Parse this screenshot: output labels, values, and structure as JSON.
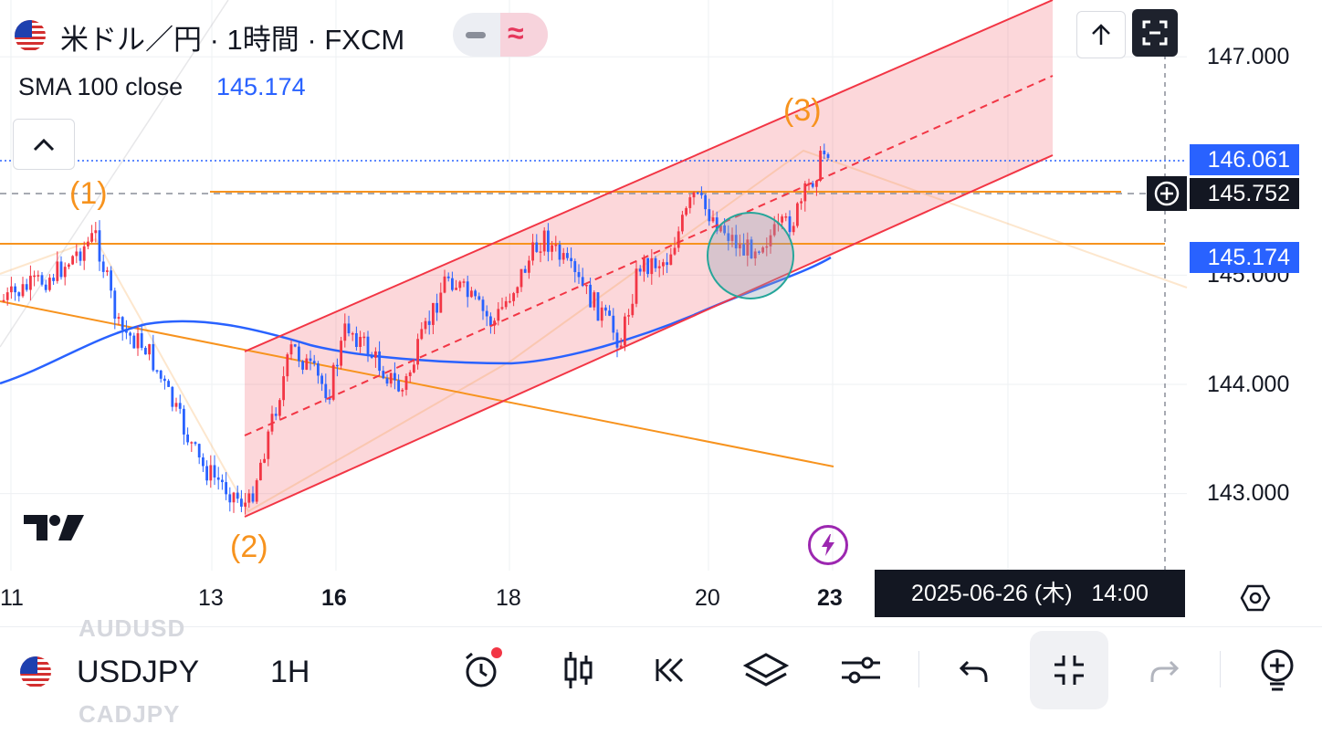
{
  "header": {
    "title": "米ドル／円 · 1時間 · FXCM",
    "indicator_label": "SMA 100 close",
    "indicator_value": "145.174"
  },
  "price_axis": {
    "ticks": [
      "147.000",
      "144.000",
      "143.000"
    ],
    "partial_tick": "145.000",
    "labels": {
      "last_price": "146.061",
      "crosshair_price": "145.752",
      "sma_price": "145.174"
    }
  },
  "time_axis": {
    "ticks": [
      {
        "label": "11",
        "bold": false
      },
      {
        "label": "13",
        "bold": false
      },
      {
        "label": "16",
        "bold": true
      },
      {
        "label": "18",
        "bold": false
      },
      {
        "label": "20",
        "bold": false
      },
      {
        "label": "23",
        "bold": true
      }
    ],
    "crosshair_time": "2025-06-26 (木)   14:00"
  },
  "wave_labels": [
    "(1)",
    "(2)",
    "(3)"
  ],
  "bottom_bar": {
    "symbol": "USDJPY",
    "interval": "1H",
    "ghost_above": "AUDUSD",
    "ghost_below": "CADJPY"
  },
  "icons": {
    "flag": "us-jp-flag-icon",
    "alert": "alarm-clock-icon",
    "chart_type": "candlestick-icon",
    "replay": "rewind-icon",
    "layers": "layers-icon",
    "settings": "sliders-icon",
    "undo": "undo-icon",
    "redo": "redo-icon",
    "collapse": "collapse-icon",
    "add_indicator": "add-bulb-icon"
  },
  "colors": {
    "up_candle": "#f23645",
    "down_candle": "#2962ff",
    "sma": "#2962ff",
    "channel": "#f23645",
    "trendline": "#f7931e",
    "wave_label": "#f7931e",
    "highlight_circle": "#26a69a"
  },
  "chart_data": {
    "type": "candlestick",
    "symbol": "USDJPY",
    "timeframe": "1H",
    "indicator": "SMA 100 close",
    "price_scale_ticks": [
      143.0,
      144.0,
      145.0,
      147.0
    ],
    "time_ticks": [
      "11",
      "13",
      "16",
      "18",
      "20",
      "23"
    ],
    "visible_price_range": [
      142.5,
      147.3
    ],
    "last_price": 146.061,
    "horizontal_levels": [
      145.752,
      145.174
    ],
    "wave_points": [
      {
        "label": "(1)",
        "price": 145.4
      },
      {
        "label": "(2)",
        "price": 142.8
      },
      {
        "label": "(3)",
        "price": 146.2
      }
    ]
  }
}
